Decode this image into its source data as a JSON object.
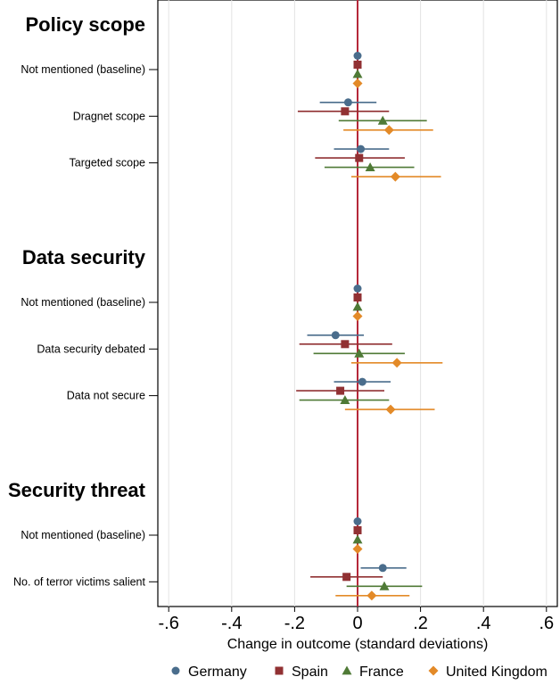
{
  "chart_data": {
    "type": "scatter",
    "subtype": "coefficient-plot",
    "title": "",
    "xlabel": "Change in outcome (standard deviations)",
    "xlim": [
      -0.65,
      0.65
    ],
    "xticks": [
      -0.6,
      -0.4,
      -0.2,
      0,
      0.2,
      0.4,
      0.6
    ],
    "xtick_labels": [
      "-.6",
      "-.4",
      "-.2",
      "0",
      ".2",
      ".4",
      ".6"
    ],
    "grid": "vertical",
    "reference_line": 0,
    "reference_line_color": "#b5283a",
    "legend_position": "bottom",
    "series": [
      {
        "name": "Germany",
        "color": "#4a6d8c",
        "marker": "circle"
      },
      {
        "name": "Spain",
        "color": "#913133",
        "marker": "square"
      },
      {
        "name": "France",
        "color": "#4f7a36",
        "marker": "triangle"
      },
      {
        "name": "United Kingdom",
        "color": "#e38a28",
        "marker": "diamond"
      }
    ],
    "sections": [
      {
        "title": "Policy scope",
        "rows": [
          {
            "label": "Not mentioned (baseline)",
            "estimates": [
              {
                "est": 0,
                "lo": 0,
                "hi": 0
              },
              {
                "est": 0,
                "lo": 0,
                "hi": 0
              },
              {
                "est": 0,
                "lo": 0,
                "hi": 0
              },
              {
                "est": 0,
                "lo": 0,
                "hi": 0
              }
            ]
          },
          {
            "label": "Dragnet scope",
            "estimates": [
              {
                "est": -0.03,
                "lo": -0.12,
                "hi": 0.06
              },
              {
                "est": -0.04,
                "lo": -0.19,
                "hi": 0.1
              },
              {
                "est": 0.08,
                "lo": -0.06,
                "hi": 0.22
              },
              {
                "est": 0.1,
                "lo": -0.045,
                "hi": 0.24
              }
            ]
          },
          {
            "label": "Targeted scope",
            "estimates": [
              {
                "est": 0.01,
                "lo": -0.075,
                "hi": 0.1
              },
              {
                "est": 0.005,
                "lo": -0.135,
                "hi": 0.15
              },
              {
                "est": 0.04,
                "lo": -0.105,
                "hi": 0.18
              },
              {
                "est": 0.12,
                "lo": -0.02,
                "hi": 0.265
              }
            ]
          }
        ]
      },
      {
        "title": "Data security",
        "rows": [
          {
            "label": "Not mentioned (baseline)",
            "estimates": [
              {
                "est": 0,
                "lo": 0,
                "hi": 0
              },
              {
                "est": 0,
                "lo": 0,
                "hi": 0
              },
              {
                "est": 0,
                "lo": 0,
                "hi": 0
              },
              {
                "est": 0,
                "lo": 0,
                "hi": 0
              }
            ]
          },
          {
            "label": "Data security debated",
            "estimates": [
              {
                "est": -0.07,
                "lo": -0.16,
                "hi": 0.02
              },
              {
                "est": -0.04,
                "lo": -0.185,
                "hi": 0.11
              },
              {
                "est": 0.005,
                "lo": -0.14,
                "hi": 0.15
              },
              {
                "est": 0.125,
                "lo": -0.02,
                "hi": 0.27
              }
            ]
          },
          {
            "label": "Data not secure",
            "estimates": [
              {
                "est": 0.015,
                "lo": -0.075,
                "hi": 0.105
              },
              {
                "est": -0.055,
                "lo": -0.195,
                "hi": 0.085
              },
              {
                "est": -0.04,
                "lo": -0.185,
                "hi": 0.1
              },
              {
                "est": 0.105,
                "lo": -0.04,
                "hi": 0.245
              }
            ]
          }
        ]
      },
      {
        "title": "Security threat",
        "rows": [
          {
            "label": "Not mentioned (baseline)",
            "estimates": [
              {
                "est": 0,
                "lo": 0,
                "hi": 0
              },
              {
                "est": 0,
                "lo": 0,
                "hi": 0
              },
              {
                "est": 0,
                "lo": 0,
                "hi": 0
              },
              {
                "est": 0,
                "lo": 0,
                "hi": 0
              }
            ]
          },
          {
            "label": "No. of terror victims salient",
            "estimates": [
              {
                "est": 0.08,
                "lo": 0.01,
                "hi": 0.155
              },
              {
                "est": -0.035,
                "lo": -0.15,
                "hi": 0.08
              },
              {
                "est": 0.085,
                "lo": -0.035,
                "hi": 0.205
              },
              {
                "est": 0.045,
                "lo": -0.07,
                "hi": 0.165
              }
            ]
          }
        ]
      }
    ]
  }
}
